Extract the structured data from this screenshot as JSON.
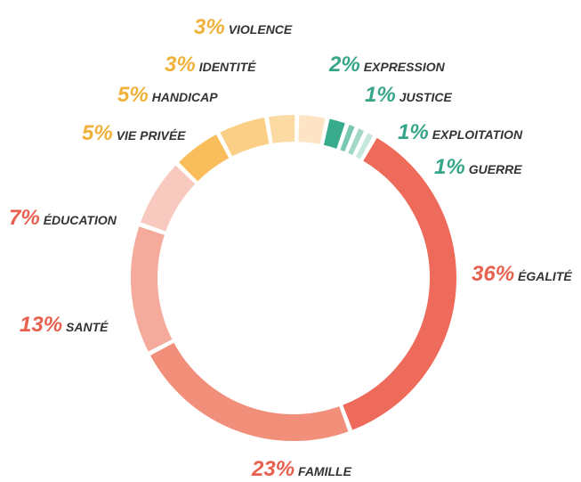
{
  "chart_data": {
    "type": "donut",
    "categories": [
      "EXPRESSION",
      "JUSTICE",
      "EXPLOITATION",
      "GUERRE",
      "ÉGALITÉ",
      "FAMILLE",
      "SANTÉ",
      "ÉDUCATION",
      "VIE PRIVÉE",
      "HANDICAP",
      "IDENTITÉ",
      "VIOLENCE"
    ],
    "values": [
      2,
      1,
      1,
      1,
      36,
      23,
      13,
      7,
      5,
      5,
      3,
      3
    ],
    "value_labels": [
      "2%",
      "1%",
      "1%",
      "1%",
      "36%",
      "23%",
      "13%",
      "7%",
      "5%",
      "5%",
      "3%",
      "3%"
    ],
    "colors": [
      "#38ab8c",
      "#79c8b2",
      "#a3d8c8",
      "#c6e7dc",
      "#ee6a5a",
      "#f18f7b",
      "#f5ab9c",
      "#f8c9be",
      "#f9bd5b",
      "#fbcf86",
      "#fcdaa3",
      "#fde4c5"
    ],
    "label_colors": [
      "#36a588",
      "#36a588",
      "#36a588",
      "#36a588",
      "#e8604e",
      "#e8604e",
      "#e8604e",
      "#e8604e",
      "#f0b13a",
      "#f0b13a",
      "#f0b13a",
      "#f0b13a"
    ]
  }
}
